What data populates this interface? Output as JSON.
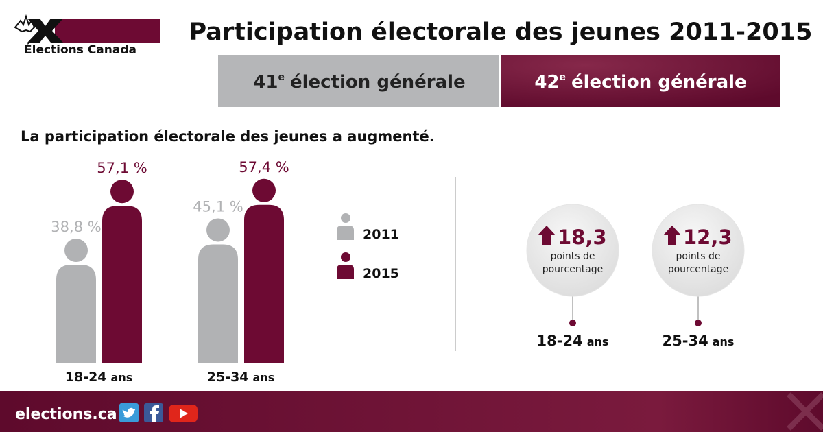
{
  "logo": "Élections Canada",
  "title": "Participation électorale des jeunes 2011-2015",
  "tabs": [
    {
      "number": "41",
      "sup": "e",
      "text": "élection générale"
    },
    {
      "number": "42",
      "sup": "e",
      "text": "élection générale"
    }
  ],
  "chart_data": {
    "type": "bar",
    "title": "La participation électorale des jeunes a augmenté.",
    "categories": [
      "18-24",
      "25-34"
    ],
    "category_suffix": "ans",
    "series": [
      {
        "name": "2011",
        "color": "#b1b2b4",
        "values": [
          38.8,
          45.1
        ],
        "value_labels": [
          "38,8 %",
          "45,1 %"
        ]
      },
      {
        "name": "2015",
        "color": "#6d0a33",
        "values": [
          57.1,
          57.4
        ],
        "value_labels": [
          "57,1 %",
          "57,4 %"
        ]
      }
    ]
  },
  "change": {
    "values": [
      18.3,
      12.3
    ],
    "value_labels": [
      "18,3",
      "12,3"
    ],
    "unit_lines": [
      "points de",
      "pourcentage"
    ],
    "categories": [
      "18-24",
      "25-34"
    ],
    "category_suffix": "ans"
  },
  "footer": "elections.ca"
}
